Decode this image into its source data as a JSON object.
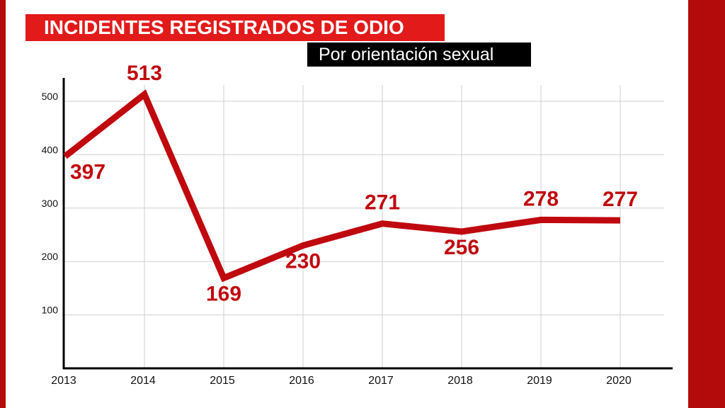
{
  "title": "INCIDENTES REGISTRADOS DE ODIO",
  "subtitle": "Por orientación sexual",
  "colors": {
    "title_bg": "#e31a1a",
    "subtitle_bg": "#000000",
    "line": "#c0080f",
    "frame": "#b30b0b"
  },
  "chart_data": {
    "type": "line",
    "title": "INCIDENTES REGISTRADOS DE ODIO",
    "subtitle": "Por orientación sexual",
    "categories": [
      "2013",
      "2014",
      "2015",
      "2016",
      "2017",
      "2018",
      "2019",
      "2020"
    ],
    "values": [
      397,
      513,
      169,
      230,
      271,
      256,
      278,
      277
    ],
    "y_ticks": [
      100,
      200,
      300,
      400,
      500
    ],
    "ylim": [
      0,
      550
    ],
    "grid": true,
    "legend": "none"
  }
}
